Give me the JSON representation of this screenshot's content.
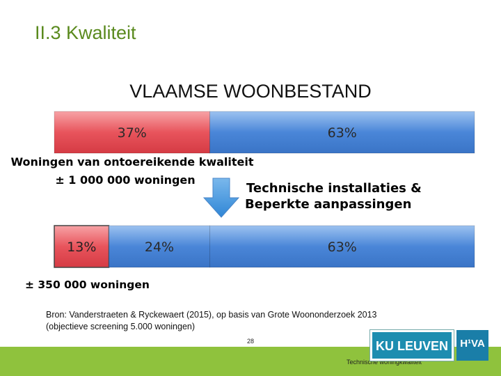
{
  "slide": {
    "title": "II.3 Kwaliteit",
    "source_line1": "Bron: Vanderstraeten & Ryckewaert (2015), op basis van Grote Woononderzoek 2013",
    "source_line2": "(objectieve screening 5.000 woningen)",
    "page_number": "28",
    "footer_caption": "Technische woningkwaliteit",
    "logo_ku": "KU LEUVEN",
    "logo_hva": "H¹VA"
  },
  "chart_data": {
    "type": "bar",
    "title": "VLAAMSE WOONBESTAND",
    "bars": [
      {
        "segments": [
          {
            "value": 37,
            "label": "37%",
            "color": "#e8545c"
          },
          {
            "value": 63,
            "label": "63%",
            "color": "#4a86d8"
          }
        ]
      },
      {
        "segments": [
          {
            "value": 13,
            "label": "13%",
            "color": "#e8545c"
          },
          {
            "value": 24,
            "label": "24%",
            "color": "#4a86d8"
          },
          {
            "value": 63,
            "label": "63%",
            "color": "#4a86d8"
          }
        ]
      }
    ],
    "annotations": {
      "top_note_line1": "Woningen van ontoereikende kwaliteit",
      "top_note_line2": "± 1 000 000 woningen",
      "right_note_line1": "Technische installaties &",
      "right_note_line2": "Beperkte aanpassingen",
      "bottom_note": "± 350 000 woningen"
    }
  }
}
